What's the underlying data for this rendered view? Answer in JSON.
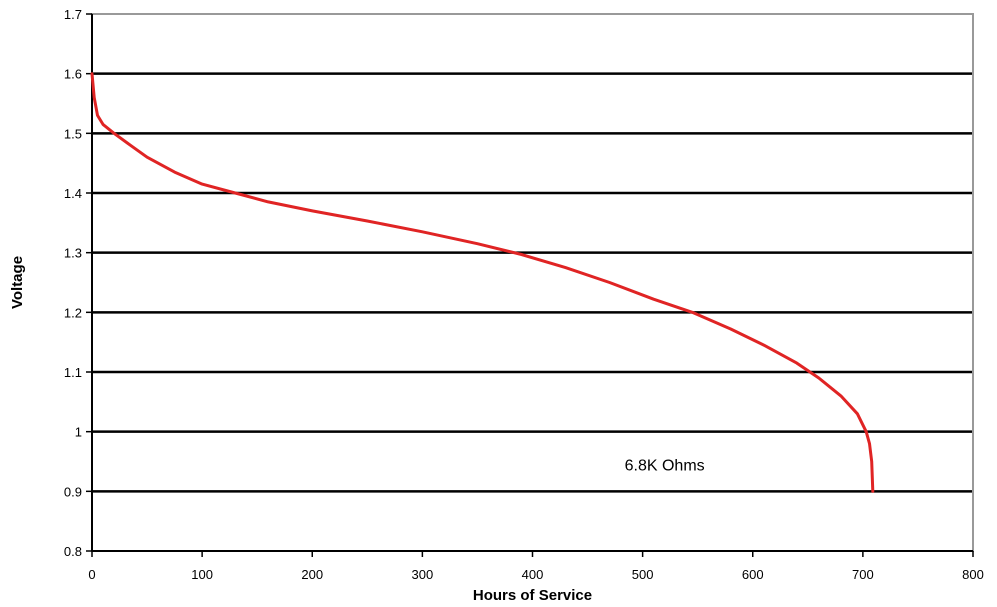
{
  "chart_data": {
    "type": "line",
    "title": "",
    "xlabel": "Hours of Service",
    "ylabel": "Voltage",
    "xlim": [
      0,
      800
    ],
    "ylim": [
      0.8,
      1.7
    ],
    "x_ticks": [
      "0",
      "100",
      "200",
      "300",
      "400",
      "500",
      "600",
      "700",
      "800"
    ],
    "y_ticks": [
      "0.8",
      "0.9",
      "1",
      "1.1",
      "1.2",
      "1.3",
      "1.4",
      "1.5",
      "1.6",
      "1.7"
    ],
    "grid": "horizontal",
    "colors": {
      "series": "#e02424",
      "grid": "#000000",
      "frame": "#999999"
    },
    "annotations": [
      {
        "text": "6.8K Ohms",
        "x": 520,
        "y": 0.945
      }
    ],
    "series": [
      {
        "x": [
          0,
          2,
          5,
          10,
          20,
          35,
          50,
          75,
          100,
          130,
          160,
          200,
          250,
          300,
          350,
          390,
          430,
          470,
          510,
          545,
          580,
          610,
          640,
          660,
          680,
          695,
          703,
          706,
          708,
          709
        ],
        "y": [
          1.6,
          1.56,
          1.53,
          1.515,
          1.5,
          1.48,
          1.46,
          1.435,
          1.415,
          1.4,
          1.385,
          1.37,
          1.353,
          1.335,
          1.315,
          1.297,
          1.275,
          1.25,
          1.222,
          1.2,
          1.172,
          1.145,
          1.115,
          1.09,
          1.06,
          1.03,
          1.0,
          0.98,
          0.95,
          0.9
        ]
      }
    ]
  }
}
